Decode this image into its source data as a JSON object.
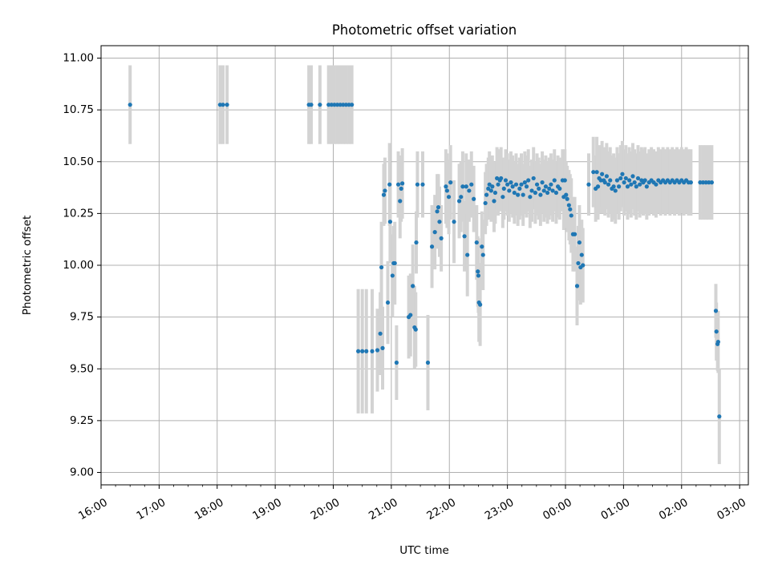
{
  "chart_data": {
    "type": "scatter",
    "title": "Photometric offset variation",
    "xlabel": "UTC time",
    "ylabel": "Photometric offset",
    "x_unit": "hours after 16:00 UTC (times past 24:00 are next day)",
    "xlim": [
      16.0,
      27.15
    ],
    "ylim": [
      8.94,
      11.06
    ],
    "grid": true,
    "x_ticks": [
      {
        "value": 16,
        "label": "16:00"
      },
      {
        "value": 17,
        "label": "17:00"
      },
      {
        "value": 18,
        "label": "18:00"
      },
      {
        "value": 19,
        "label": "19:00"
      },
      {
        "value": 20,
        "label": "20:00"
      },
      {
        "value": 21,
        "label": "21:00"
      },
      {
        "value": 22,
        "label": "22:00"
      },
      {
        "value": 23,
        "label": "23:00"
      },
      {
        "value": 24,
        "label": "00:00"
      },
      {
        "value": 25,
        "label": "01:00"
      },
      {
        "value": 26,
        "label": "02:00"
      },
      {
        "value": 27,
        "label": "03:00"
      }
    ],
    "y_ticks": [
      {
        "value": 9.0,
        "label": "9.00"
      },
      {
        "value": 9.25,
        "label": "9.25"
      },
      {
        "value": 9.5,
        "label": "9.50"
      },
      {
        "value": 9.75,
        "label": "9.75"
      },
      {
        "value": 10.0,
        "label": "10.00"
      },
      {
        "value": 10.25,
        "label": "10.25"
      },
      {
        "value": 10.5,
        "label": "10.50"
      },
      {
        "value": 10.75,
        "label": "10.75"
      },
      {
        "value": 11.0,
        "label": "11.00"
      }
    ],
    "series": [
      {
        "marker_color": "#1f77b4",
        "errorbar_color": "#d3d3d3",
        "points": [
          [
            16.5,
            10.775,
            0.19
          ],
          [
            18.05,
            10.775,
            0.19
          ],
          [
            18.1,
            10.775,
            0.19
          ],
          [
            18.17,
            10.775,
            0.19
          ],
          [
            19.58,
            10.775,
            0.19
          ],
          [
            19.62,
            10.775,
            0.19
          ],
          [
            19.77,
            10.775,
            0.19
          ],
          [
            19.92,
            10.775,
            0.19
          ],
          [
            19.97,
            10.775,
            0.19
          ],
          [
            20.02,
            10.775,
            0.19
          ],
          [
            20.07,
            10.775,
            0.19
          ],
          [
            20.12,
            10.775,
            0.19
          ],
          [
            20.17,
            10.775,
            0.19
          ],
          [
            20.22,
            10.775,
            0.19
          ],
          [
            20.27,
            10.775,
            0.19
          ],
          [
            20.32,
            10.775,
            0.19
          ],
          [
            20.43,
            9.585,
            0.3
          ],
          [
            20.5,
            9.585,
            0.3
          ],
          [
            20.57,
            9.585,
            0.3
          ],
          [
            20.67,
            9.585,
            0.3
          ],
          [
            20.76,
            9.59,
            0.2
          ],
          [
            20.81,
            9.67,
            0.2
          ],
          [
            20.83,
            9.99,
            0.22
          ],
          [
            20.85,
            9.6,
            0.2
          ],
          [
            20.87,
            10.34,
            0.15
          ],
          [
            20.89,
            10.36,
            0.16
          ],
          [
            20.94,
            9.82,
            0.2
          ],
          [
            20.97,
            10.39,
            0.2
          ],
          [
            20.98,
            10.21,
            0.2
          ],
          [
            21.02,
            9.95,
            0.2
          ],
          [
            21.04,
            10.01,
            0.18
          ],
          [
            21.06,
            10.01,
            0.2
          ],
          [
            21.09,
            9.53,
            0.18
          ],
          [
            21.12,
            10.39,
            0.16
          ],
          [
            21.15,
            10.31,
            0.18
          ],
          [
            21.17,
            10.37,
            0.16
          ],
          [
            21.19,
            10.395,
            0.17
          ],
          [
            21.3,
            9.75,
            0.2
          ],
          [
            21.33,
            9.76,
            0.2
          ],
          [
            21.37,
            9.9,
            0.2
          ],
          [
            21.4,
            9.7,
            0.2
          ],
          [
            21.42,
            9.69,
            0.18
          ],
          [
            21.43,
            10.11,
            0.15
          ],
          [
            21.45,
            10.39,
            0.16
          ],
          [
            21.54,
            10.39,
            0.16
          ],
          [
            21.63,
            9.53,
            0.23
          ],
          [
            21.7,
            10.09,
            0.2
          ],
          [
            21.75,
            10.16,
            0.18
          ],
          [
            21.79,
            10.26,
            0.18
          ],
          [
            21.81,
            10.28,
            0.16
          ],
          [
            21.83,
            10.21,
            0.17
          ],
          [
            21.86,
            10.13,
            0.16
          ],
          [
            21.94,
            10.38,
            0.18
          ],
          [
            21.96,
            10.36,
            0.18
          ],
          [
            21.99,
            10.33,
            0.18
          ],
          [
            22.02,
            10.4,
            0.18
          ],
          [
            22.08,
            10.21,
            0.2
          ],
          [
            22.17,
            10.31,
            0.18
          ],
          [
            22.2,
            10.33,
            0.17
          ],
          [
            22.23,
            10.38,
            0.17
          ],
          [
            22.26,
            10.14,
            0.17
          ],
          [
            22.29,
            10.38,
            0.16
          ],
          [
            22.31,
            10.05,
            0.2
          ],
          [
            22.34,
            10.36,
            0.15
          ],
          [
            22.38,
            10.39,
            0.16
          ],
          [
            22.42,
            10.32,
            0.16
          ],
          [
            22.47,
            10.11,
            0.18
          ],
          [
            22.49,
            9.97,
            0.17
          ],
          [
            22.5,
            9.95,
            0.18
          ],
          [
            22.51,
            9.82,
            0.19
          ],
          [
            22.53,
            9.81,
            0.2
          ],
          [
            22.56,
            10.09,
            0.17
          ],
          [
            22.58,
            10.05,
            0.17
          ],
          [
            22.62,
            10.3,
            0.15
          ],
          [
            22.64,
            10.34,
            0.15
          ],
          [
            22.67,
            10.37,
            0.15
          ],
          [
            22.69,
            10.39,
            0.16
          ],
          [
            22.72,
            10.36,
            0.15
          ],
          [
            22.74,
            10.38,
            0.15
          ],
          [
            22.77,
            10.31,
            0.15
          ],
          [
            22.79,
            10.35,
            0.15
          ],
          [
            22.82,
            10.42,
            0.15
          ],
          [
            22.84,
            10.39,
            0.15
          ],
          [
            22.87,
            10.41,
            0.15
          ],
          [
            22.89,
            10.42,
            0.15
          ],
          [
            22.92,
            10.33,
            0.15
          ],
          [
            22.94,
            10.37,
            0.15
          ],
          [
            22.97,
            10.41,
            0.15
          ],
          [
            23.0,
            10.39,
            0.15
          ],
          [
            23.03,
            10.36,
            0.15
          ],
          [
            23.06,
            10.4,
            0.15
          ],
          [
            23.09,
            10.38,
            0.15
          ],
          [
            23.12,
            10.35,
            0.15
          ],
          [
            23.15,
            10.39,
            0.15
          ],
          [
            23.18,
            10.34,
            0.15
          ],
          [
            23.21,
            10.37,
            0.15
          ],
          [
            23.24,
            10.39,
            0.15
          ],
          [
            23.27,
            10.34,
            0.15
          ],
          [
            23.3,
            10.4,
            0.15
          ],
          [
            23.33,
            10.38,
            0.15
          ],
          [
            23.36,
            10.41,
            0.15
          ],
          [
            23.39,
            10.33,
            0.15
          ],
          [
            23.42,
            10.36,
            0.15
          ],
          [
            23.45,
            10.42,
            0.15
          ],
          [
            23.48,
            10.35,
            0.15
          ],
          [
            23.51,
            10.39,
            0.15
          ],
          [
            23.54,
            10.37,
            0.15
          ],
          [
            23.57,
            10.34,
            0.15
          ],
          [
            23.6,
            10.4,
            0.15
          ],
          [
            23.63,
            10.36,
            0.15
          ],
          [
            23.66,
            10.38,
            0.15
          ],
          [
            23.69,
            10.35,
            0.15
          ],
          [
            23.72,
            10.37,
            0.15
          ],
          [
            23.75,
            10.39,
            0.15
          ],
          [
            23.78,
            10.36,
            0.15
          ],
          [
            23.81,
            10.41,
            0.15
          ],
          [
            23.84,
            10.35,
            0.15
          ],
          [
            23.87,
            10.38,
            0.15
          ],
          [
            23.9,
            10.37,
            0.15
          ],
          [
            23.95,
            10.41,
            0.15
          ],
          [
            23.97,
            10.33,
            0.16
          ],
          [
            23.99,
            10.41,
            0.15
          ],
          [
            24.01,
            10.34,
            0.16
          ],
          [
            24.03,
            10.32,
            0.16
          ],
          [
            24.06,
            10.29,
            0.17
          ],
          [
            24.08,
            10.27,
            0.17
          ],
          [
            24.1,
            10.24,
            0.18
          ],
          [
            24.13,
            10.15,
            0.18
          ],
          [
            24.16,
            10.15,
            0.18
          ],
          [
            24.2,
            9.9,
            0.19
          ],
          [
            24.22,
            10.01,
            0.18
          ],
          [
            24.24,
            10.11,
            0.18
          ],
          [
            24.26,
            9.99,
            0.18
          ],
          [
            24.28,
            10.05,
            0.17
          ],
          [
            24.3,
            10.0,
            0.18
          ],
          [
            24.4,
            10.39,
            0.15
          ],
          [
            24.48,
            10.45,
            0.17
          ],
          [
            24.52,
            10.37,
            0.16
          ],
          [
            24.54,
            10.45,
            0.17
          ],
          [
            24.56,
            10.38,
            0.16
          ],
          [
            24.58,
            10.42,
            0.16
          ],
          [
            24.61,
            10.41,
            0.16
          ],
          [
            24.63,
            10.44,
            0.16
          ],
          [
            24.66,
            10.41,
            0.16
          ],
          [
            24.68,
            10.4,
            0.16
          ],
          [
            24.71,
            10.43,
            0.16
          ],
          [
            24.74,
            10.39,
            0.16
          ],
          [
            24.77,
            10.41,
            0.16
          ],
          [
            24.8,
            10.37,
            0.16
          ],
          [
            24.83,
            10.38,
            0.16
          ],
          [
            24.86,
            10.36,
            0.16
          ],
          [
            24.89,
            10.41,
            0.16
          ],
          [
            24.92,
            10.38,
            0.16
          ],
          [
            24.95,
            10.42,
            0.16
          ],
          [
            24.98,
            10.44,
            0.16
          ],
          [
            25.01,
            10.4,
            0.16
          ],
          [
            25.04,
            10.42,
            0.16
          ],
          [
            25.07,
            10.38,
            0.16
          ],
          [
            25.1,
            10.41,
            0.16
          ],
          [
            25.13,
            10.39,
            0.16
          ],
          [
            25.16,
            10.43,
            0.16
          ],
          [
            25.19,
            10.4,
            0.16
          ],
          [
            25.22,
            10.38,
            0.16
          ],
          [
            25.25,
            10.42,
            0.16
          ],
          [
            25.28,
            10.39,
            0.16
          ],
          [
            25.31,
            10.41,
            0.16
          ],
          [
            25.34,
            10.4,
            0.16
          ],
          [
            25.37,
            10.41,
            0.16
          ],
          [
            25.4,
            10.38,
            0.16
          ],
          [
            25.44,
            10.4,
            0.16
          ],
          [
            25.48,
            10.41,
            0.16
          ],
          [
            25.52,
            10.4,
            0.16
          ],
          [
            25.56,
            10.39,
            0.16
          ],
          [
            25.6,
            10.41,
            0.16
          ],
          [
            25.64,
            10.4,
            0.16
          ],
          [
            25.68,
            10.41,
            0.16
          ],
          [
            25.72,
            10.4,
            0.16
          ],
          [
            25.76,
            10.41,
            0.16
          ],
          [
            25.8,
            10.4,
            0.16
          ],
          [
            25.84,
            10.41,
            0.16
          ],
          [
            25.88,
            10.4,
            0.16
          ],
          [
            25.92,
            10.41,
            0.16
          ],
          [
            25.96,
            10.4,
            0.16
          ],
          [
            26.0,
            10.41,
            0.16
          ],
          [
            26.04,
            10.4,
            0.16
          ],
          [
            26.08,
            10.41,
            0.16
          ],
          [
            26.12,
            10.4,
            0.16
          ],
          [
            26.16,
            10.4,
            0.16
          ],
          [
            26.32,
            10.4,
            0.18
          ],
          [
            26.37,
            10.4,
            0.18
          ],
          [
            26.42,
            10.4,
            0.18
          ],
          [
            26.47,
            10.4,
            0.18
          ],
          [
            26.52,
            10.4,
            0.18
          ],
          [
            26.59,
            9.78,
            0.13
          ],
          [
            26.6,
            9.68,
            0.14
          ],
          [
            26.62,
            9.62,
            0.13
          ],
          [
            26.63,
            9.63,
            0.15
          ],
          [
            26.65,
            9.27,
            0.23
          ]
        ]
      }
    ]
  }
}
